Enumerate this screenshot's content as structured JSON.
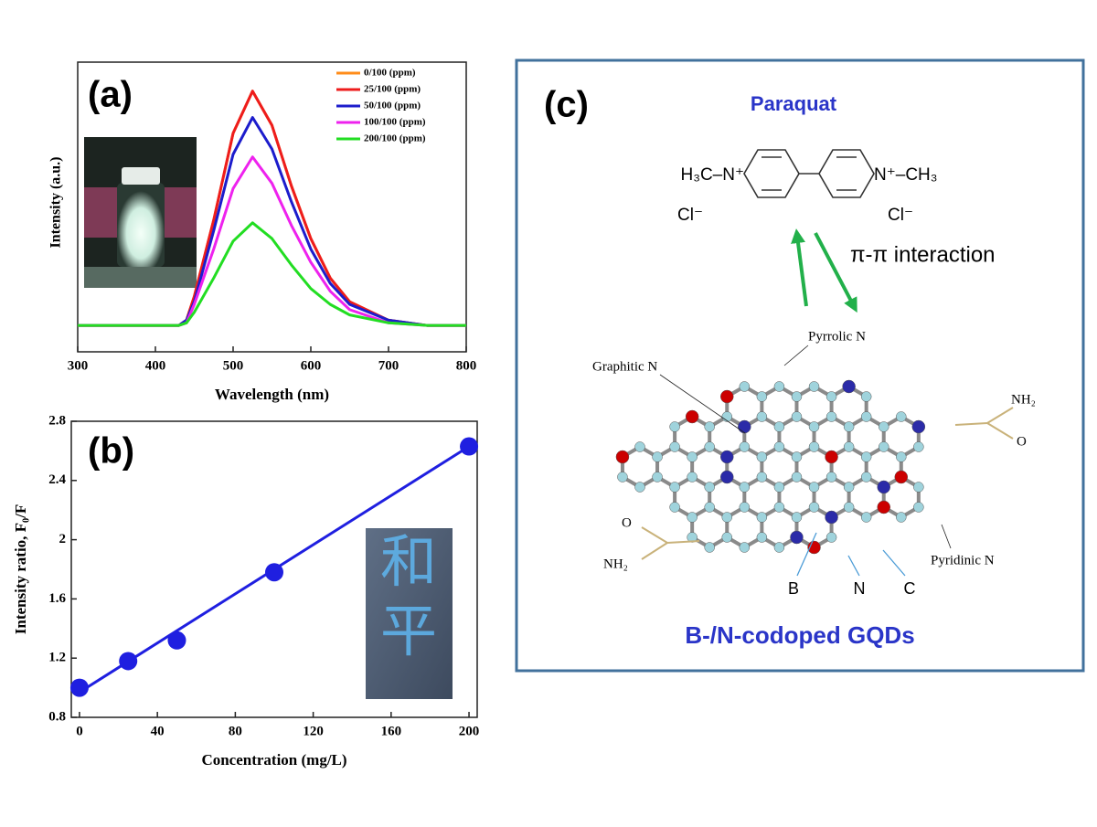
{
  "chart_data": [
    {
      "type": "line",
      "panel_label": "(a)",
      "xlabel": "Wavelength (nm)",
      "ylabel": "Intensity (a.u.)",
      "x": [
        300,
        400,
        430,
        440,
        450,
        475,
        500,
        525,
        550,
        575,
        600,
        625,
        650,
        700,
        750,
        800
      ],
      "xlim": [
        300,
        800
      ],
      "xticks": [
        300,
        400,
        500,
        600,
        700,
        800
      ],
      "ylim": [
        -0.1,
        1.0
      ],
      "yticks": [],
      "legend": "upper right",
      "series": [
        {
          "name": "0/100 (ppm)",
          "color": "#ff8c1a",
          "values": [
            0,
            0,
            0,
            0.02,
            0.11,
            0.4,
            0.73,
            0.89,
            0.76,
            0.53,
            0.33,
            0.18,
            0.09,
            0.02,
            0,
            0
          ]
        },
        {
          "name": "25/100 (ppm)",
          "color": "#ee1c1c",
          "values": [
            0,
            0,
            0,
            0.02,
            0.11,
            0.4,
            0.73,
            0.89,
            0.76,
            0.53,
            0.33,
            0.18,
            0.09,
            0.02,
            0,
            0
          ]
        },
        {
          "name": "50/100 (ppm)",
          "color": "#1c1ccc",
          "values": [
            0,
            0,
            0,
            0.02,
            0.09,
            0.36,
            0.65,
            0.79,
            0.67,
            0.47,
            0.29,
            0.16,
            0.08,
            0.02,
            0,
            0
          ]
        },
        {
          "name": "100/100 (ppm)",
          "color": "#ee22ee",
          "values": [
            0,
            0,
            0,
            0.01,
            0.08,
            0.29,
            0.52,
            0.64,
            0.54,
            0.38,
            0.24,
            0.13,
            0.06,
            0.01,
            0,
            0
          ]
        },
        {
          "name": "200/100 (ppm)",
          "color": "#22dd22",
          "values": [
            0,
            0,
            0,
            0.01,
            0.05,
            0.18,
            0.32,
            0.39,
            0.33,
            0.23,
            0.14,
            0.08,
            0.04,
            0.01,
            0,
            0
          ]
        }
      ]
    },
    {
      "type": "scatter",
      "panel_label": "(b)",
      "xlabel": "Concentration (mg/L)",
      "ylabel": "Intensity ratio, F₀/F",
      "x": [
        0,
        25,
        50,
        100,
        200
      ],
      "values": [
        1.0,
        1.18,
        1.32,
        1.78,
        2.63
      ],
      "color": "#1f1fe0",
      "trendline": {
        "x": [
          0,
          200
        ],
        "values": [
          0.97,
          2.63
        ]
      },
      "xlim": [
        -4.2,
        204.2
      ],
      "xticks": [
        0,
        40,
        80,
        120,
        160,
        200
      ],
      "ylim": [
        0.8,
        2.8
      ],
      "yticks": [
        0.8,
        1.2,
        1.6,
        2,
        2.4,
        2.8
      ],
      "inset_text": [
        "和",
        "平"
      ]
    }
  ],
  "diagram": {
    "panel_label": "(c)",
    "molecule": "Paraquat",
    "left_group": "H₃C–N⁺",
    "right_group": "N⁺–CH₃",
    "counter_ions": [
      "Cl⁻",
      "Cl⁻"
    ],
    "interaction": "π-π interaction",
    "labels": [
      "Pyrrolic N",
      "Graphitic N",
      "NH₂",
      "O",
      "O",
      "NH₂",
      "Pyridinic N",
      "B",
      "N",
      "C"
    ],
    "caption": "B-/N-codoped GQDs"
  }
}
